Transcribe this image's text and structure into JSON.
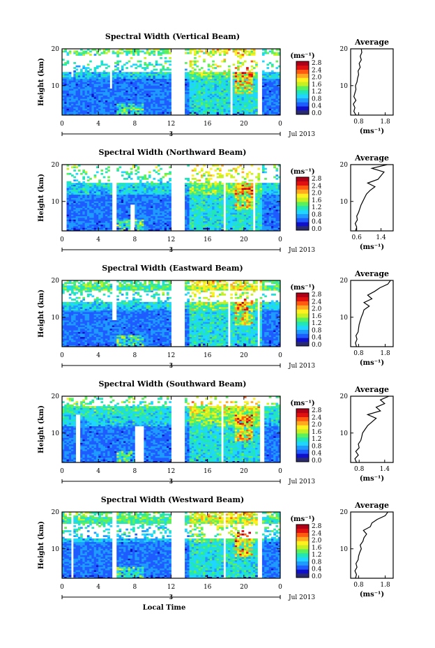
{
  "figure": {
    "xlabel": "Local Time",
    "date_label": "Jul 2013",
    "day_marker": "3",
    "colorbar_unit": "(ms⁻¹)",
    "colorbar_ticks": [
      "0.0",
      "0.4",
      "0.8",
      "1.2",
      "1.6",
      "2.0",
      "2.4",
      "2.8"
    ],
    "colormap": [
      "#2a2a6e",
      "#1010c8",
      "#1e5cff",
      "#1f9bff",
      "#1fd6ff",
      "#22e6b5",
      "#5cf05a",
      "#c8f020",
      "#fff020",
      "#ffa820",
      "#ff5a10",
      "#e01010",
      "#b00018"
    ]
  },
  "chart_data": [
    {
      "type": "heatmap",
      "title": "Spectral Width (Vertical Beam)",
      "ylabel": "Height (km)",
      "x_ticks": [
        "0",
        "4",
        "8",
        "12",
        "16",
        "20",
        "0"
      ],
      "y_ticks": [
        "20",
        "10"
      ],
      "xlim": [
        0,
        24
      ],
      "ylim": [
        2,
        20
      ],
      "gaps_hours": [
        [
          12.0,
          13.6
        ],
        [
          18.4,
          18.8
        ],
        [
          21.6,
          22.0
        ]
      ],
      "gaps_partial": [
        [
          5.2,
          5.6,
          9.0,
          20
        ],
        [
          1.0,
          1.3,
          12.5,
          20
        ]
      ],
      "top_blank_km": [
        [
          13.6,
          18.5
        ],
        [
          16.8,
          18.0
        ]
      ],
      "inset": {
        "title": "Average",
        "xlabel": "(ms⁻¹)",
        "x_ticks": [
          "0.8",
          "1.8"
        ],
        "y_ticks": [
          "20",
          "10"
        ],
        "xlim": [
          0.5,
          2.1
        ],
        "profile": [
          [
            2,
            0.7
          ],
          [
            3,
            0.62
          ],
          [
            4,
            0.66
          ],
          [
            5,
            0.6
          ],
          [
            6,
            0.7
          ],
          [
            7,
            0.62
          ],
          [
            8,
            0.66
          ],
          [
            9,
            0.7
          ],
          [
            10,
            0.68
          ],
          [
            11,
            0.74
          ],
          [
            12,
            0.76
          ],
          [
            13,
            0.8
          ],
          [
            14,
            0.78
          ],
          [
            15,
            0.86
          ],
          [
            16,
            0.82
          ],
          [
            17,
            0.9
          ],
          [
            18,
            0.86
          ],
          [
            19,
            0.92
          ],
          [
            20,
            0.9
          ]
        ]
      }
    },
    {
      "type": "heatmap",
      "title": "Spectral Width (Northward Beam)",
      "ylabel": "Height (km)",
      "x_ticks": [
        "0",
        "4",
        "8",
        "12",
        "16",
        "20",
        "0"
      ],
      "y_ticks": [
        "20",
        "10"
      ],
      "xlim": [
        0,
        24
      ],
      "ylim": [
        2,
        20
      ],
      "gaps_hours": [
        [
          0.0,
          0.6
        ],
        [
          5.6,
          5.9
        ],
        [
          12.0,
          13.6
        ],
        [
          17.8,
          18.1
        ],
        [
          21.0,
          21.3
        ]
      ],
      "gaps_partial": [
        [
          7.6,
          8.0,
          2,
          9
        ]
      ],
      "top_blank_km": [
        [
          15.0,
          20
        ]
      ],
      "inset": {
        "title": "Average",
        "xlabel": "(ms⁻¹)",
        "x_ticks": [
          "0.6",
          "1.4"
        ],
        "y_ticks": [
          "20",
          "10"
        ],
        "xlim": [
          0.4,
          1.8
        ],
        "profile": [
          [
            2,
            0.56
          ],
          [
            3,
            0.6
          ],
          [
            4,
            0.55
          ],
          [
            5,
            0.62
          ],
          [
            6,
            0.6
          ],
          [
            7,
            0.66
          ],
          [
            8,
            0.7
          ],
          [
            9,
            0.74
          ],
          [
            10,
            0.8
          ],
          [
            11,
            0.86
          ],
          [
            12,
            0.92
          ],
          [
            13,
            1.04
          ],
          [
            14,
            1.2
          ],
          [
            15,
            0.96
          ],
          [
            16,
            1.3
          ],
          [
            17,
            1.4
          ],
          [
            18,
            1.5
          ],
          [
            19,
            1.1
          ],
          [
            20,
            1.6
          ]
        ]
      }
    },
    {
      "type": "heatmap",
      "title": "Spectral Width (Eastward Beam)",
      "ylabel": "Height (km)",
      "x_ticks": [
        "0",
        "4",
        "8",
        "12",
        "16",
        "20",
        "0"
      ],
      "y_ticks": [
        "20",
        "10"
      ],
      "xlim": [
        0,
        24
      ],
      "ylim": [
        2,
        20
      ],
      "gaps_hours": [
        [
          12.0,
          13.6
        ],
        [
          18.2,
          18.5
        ],
        [
          21.4,
          21.7
        ]
      ],
      "gaps_partial": [
        [
          5.6,
          5.9,
          9,
          20
        ]
      ],
      "top_blank_km": [
        [
          14.0,
          17.2
        ]
      ],
      "inset": {
        "title": "Average",
        "xlabel": "(ms⁻¹)",
        "x_ticks": [
          "0.8",
          "1.8"
        ],
        "y_ticks": [
          "20",
          "10"
        ],
        "xlim": [
          0.5,
          2.1
        ],
        "profile": [
          [
            2,
            0.72
          ],
          [
            3,
            0.68
          ],
          [
            4,
            0.74
          ],
          [
            5,
            0.7
          ],
          [
            6,
            0.78
          ],
          [
            7,
            0.8
          ],
          [
            8,
            0.82
          ],
          [
            9,
            0.86
          ],
          [
            10,
            0.9
          ],
          [
            11,
            0.96
          ],
          [
            12,
            1.0
          ],
          [
            13,
            1.2
          ],
          [
            14,
            1.0
          ],
          [
            15,
            1.3
          ],
          [
            16,
            1.14
          ],
          [
            17,
            1.4
          ],
          [
            18,
            1.6
          ],
          [
            19,
            1.9
          ],
          [
            20,
            2.0
          ]
        ]
      }
    },
    {
      "type": "heatmap",
      "title": "Spectral Width (Southward Beam)",
      "ylabel": "Height (km)",
      "x_ticks": [
        "0",
        "4",
        "8",
        "12",
        "16",
        "20",
        "0"
      ],
      "y_ticks": [
        "20",
        "10"
      ],
      "xlim": [
        0,
        24
      ],
      "ylim": [
        2,
        20
      ],
      "gaps_hours": [
        [
          12.0,
          13.6
        ],
        [
          17.4,
          17.8
        ],
        [
          21.8,
          22.2
        ]
      ],
      "gaps_partial": [
        [
          1.4,
          2.0,
          2,
          15
        ],
        [
          8.0,
          9.0,
          2,
          12
        ]
      ],
      "top_blank_km": [
        [
          17.5,
          20
        ]
      ],
      "inset": {
        "title": "Average",
        "xlabel": "(ms⁻¹)",
        "x_ticks": [
          "0.8",
          "1.4"
        ],
        "y_ticks": [
          "20",
          "10"
        ],
        "xlim": [
          0.6,
          1.6
        ],
        "profile": [
          [
            2,
            0.74
          ],
          [
            3,
            0.7
          ],
          [
            4,
            0.78
          ],
          [
            5,
            0.72
          ],
          [
            6,
            0.8
          ],
          [
            7,
            0.78
          ],
          [
            8,
            0.84
          ],
          [
            9,
            0.86
          ],
          [
            10,
            0.88
          ],
          [
            11,
            0.94
          ],
          [
            12,
            1.0
          ],
          [
            13,
            1.1
          ],
          [
            14,
            1.2
          ],
          [
            15,
            1.0
          ],
          [
            16,
            1.3
          ],
          [
            17,
            1.2
          ],
          [
            18,
            1.4
          ],
          [
            19,
            1.3
          ],
          [
            20,
            1.5
          ]
        ]
      }
    },
    {
      "type": "heatmap",
      "title": "Spectral Width (Westward Beam)",
      "ylabel": "Height (km)",
      "x_ticks": [
        "0",
        "4",
        "8",
        "12",
        "16",
        "20",
        "0"
      ],
      "y_ticks": [
        "20",
        "10"
      ],
      "xlim": [
        0,
        24
      ],
      "ylim": [
        2,
        20
      ],
      "gaps_hours": [
        [
          0.9,
          1.2
        ],
        [
          5.6,
          5.9
        ],
        [
          12.0,
          13.6
        ],
        [
          17.8,
          18.1
        ],
        [
          21.6,
          21.9
        ]
      ],
      "gaps_partial": [],
      "top_blank_km": [
        [
          13.0,
          17.0
        ]
      ],
      "inset": {
        "title": "Average",
        "xlabel": "(ms⁻¹)",
        "x_ticks": [
          "0.8",
          "1.8"
        ],
        "y_ticks": [
          "20",
          "10"
        ],
        "xlim": [
          0.5,
          2.1
        ],
        "profile": [
          [
            2,
            0.68
          ],
          [
            3,
            0.72
          ],
          [
            4,
            0.66
          ],
          [
            5,
            0.74
          ],
          [
            6,
            0.7
          ],
          [
            7,
            0.78
          ],
          [
            8,
            0.8
          ],
          [
            9,
            0.84
          ],
          [
            10,
            0.9
          ],
          [
            11,
            0.86
          ],
          [
            12,
            0.96
          ],
          [
            13,
            1.0
          ],
          [
            14,
            1.1
          ],
          [
            15,
            0.98
          ],
          [
            16,
            1.24
          ],
          [
            17,
            1.3
          ],
          [
            18,
            1.5
          ],
          [
            19,
            1.8
          ],
          [
            20,
            1.9
          ]
        ]
      }
    }
  ]
}
